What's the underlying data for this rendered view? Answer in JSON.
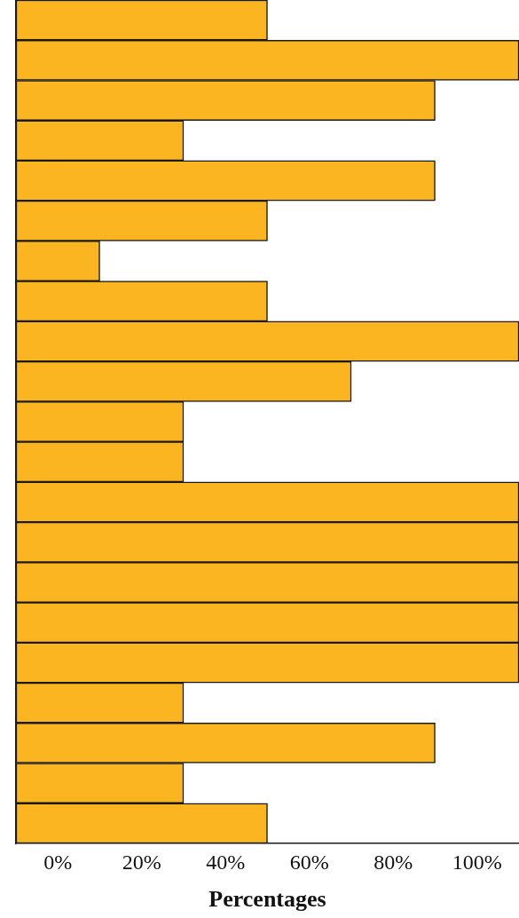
{
  "chart_data": {
    "type": "bar",
    "orientation": "horizontal",
    "xlabel": "Percentages",
    "categories": [
      null,
      null,
      null,
      null,
      null,
      null,
      null,
      null,
      null,
      null,
      null,
      null,
      null,
      null,
      null,
      null,
      null,
      null,
      null,
      null,
      null
    ],
    "values": [
      60,
      120,
      100,
      40,
      100,
      60,
      20,
      60,
      120,
      80,
      40,
      40,
      120,
      120,
      120,
      120,
      120,
      40,
      100,
      40,
      60
    ],
    "color": "#fbb520",
    "base": [
      -10,
      -10,
      -10,
      -10,
      -10,
      -10,
      -10,
      -10,
      -10,
      -10,
      -10,
      -10,
      -10,
      -10,
      -10,
      -10,
      -10,
      -10,
      -10,
      -10,
      -10
    ],
    "xlim": [
      -10,
      110
    ],
    "xticks": [
      {
        "value": 0,
        "label": "0%"
      },
      {
        "value": 20,
        "label": "20%"
      },
      {
        "value": 40,
        "label": "40%"
      },
      {
        "value": 60,
        "label": "60%"
      },
      {
        "value": 80,
        "label": "80%"
      },
      {
        "value": 100,
        "label": "100%"
      }
    ],
    "grid": false
  }
}
